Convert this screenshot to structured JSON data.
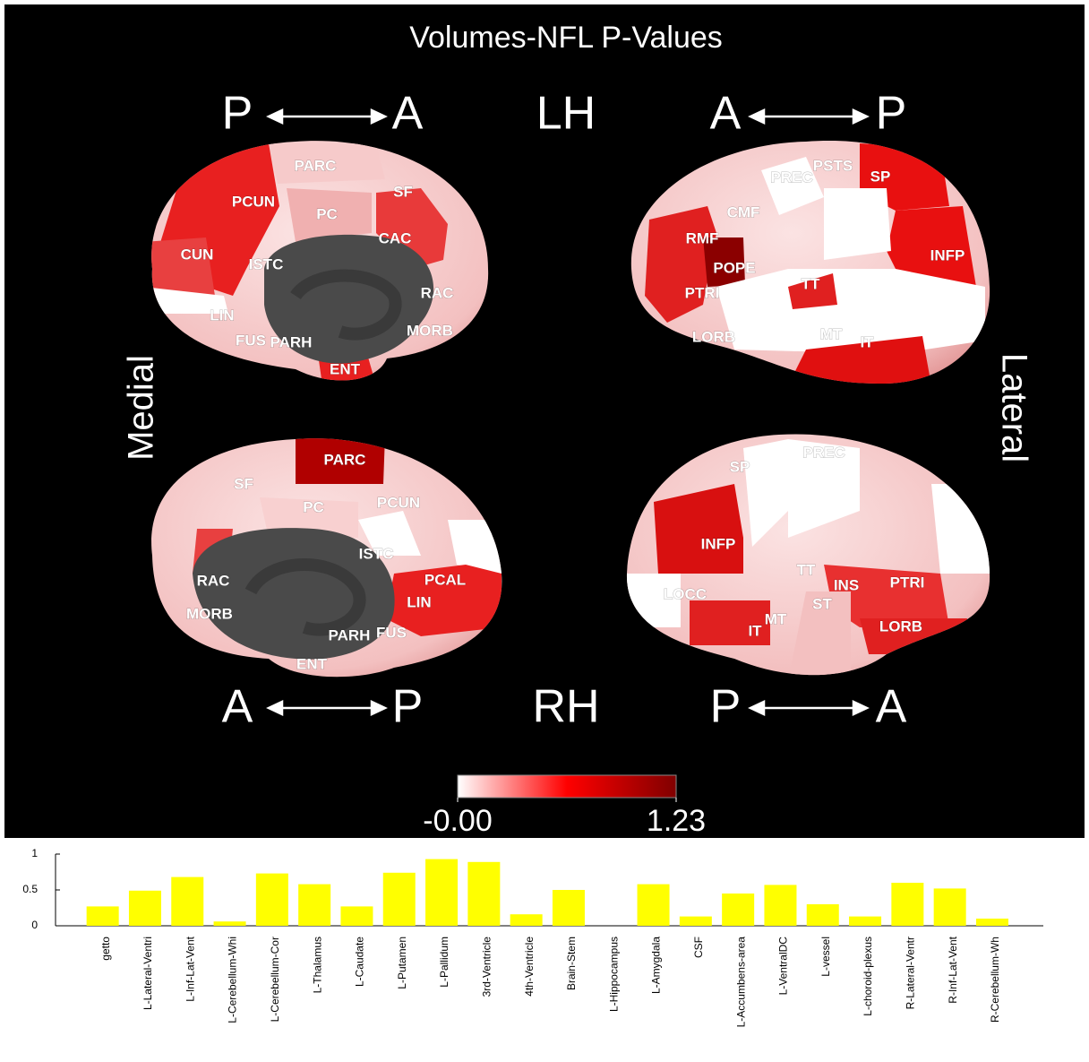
{
  "title": "Volumes-NFL P-Values",
  "orientation": {
    "top": [
      "P",
      "A",
      "LH",
      "A",
      "P"
    ],
    "bottom": [
      "A",
      "P",
      "RH",
      "P",
      "A"
    ],
    "left": "Medial",
    "right": "Lateral"
  },
  "regions": {
    "lh_medial": [
      "PARC",
      "PCUN",
      "SF",
      "PC",
      "CAC",
      "CUN",
      "ISTC",
      "RAC",
      "LIN",
      "FUS",
      "PARH",
      "MORB",
      "ENT"
    ],
    "lh_lateral": [
      "PSTS",
      "PREC",
      "SP",
      "CMF",
      "RMF",
      "POPE",
      "INFP",
      "PTRI",
      "TT",
      "LORB",
      "MT",
      "IT"
    ],
    "rh_medial": [
      "PARC",
      "SF",
      "PC",
      "PCUN",
      "ISTC",
      "RAC",
      "PCAL",
      "LIN",
      "MORB",
      "PARH",
      "FUS",
      "ENT"
    ],
    "rh_lateral": [
      "PREC",
      "SP",
      "INFP",
      "TT",
      "INS",
      "PTRI",
      "ST",
      "MT",
      "IT",
      "LORB",
      "LOCC"
    ]
  },
  "colorbar": {
    "range": [
      0,
      1.23
    ],
    "colors": [
      "#ffffff",
      "#ff0000",
      "#800000"
    ],
    "ticks": [
      {
        "value": 0,
        "label": "-0.00"
      },
      1.23
    ]
  },
  "chart_data": {
    "type": "bar",
    "color": "#ffff00",
    "categories": [
      "getto",
      "L-Lateral-Ventri",
      "L-Inf-Lat-Vent",
      "L-Cerebellum-Whi",
      "L-Cerebellum-Cor",
      "L-Thalamus",
      "L-Caudate",
      "L-Putamen",
      "L-Pallidum",
      "3rd-Ventricle",
      "4th-Ventricle",
      "Brain-Stem",
      "L-Hippocampus",
      "L-Amygdala",
      "CSF",
      "L-Accumbens-area",
      "L-VentralDC",
      "L-vessel",
      "L-choroid-plexus",
      "R-Lateral-Ventr",
      "R-Inf-Lat-Vent",
      "R-Cerebellum-Wh"
    ],
    "values": [
      0.27,
      0.49,
      0.68,
      0.06,
      0.73,
      0.58,
      0.27,
      0.74,
      0.93,
      0.89,
      0.16,
      0.5,
      0,
      0.58,
      0.13,
      0.45,
      0.57,
      0.3,
      0.13,
      0.6,
      0.52,
      0.1
    ],
    "ylim": [
      0,
      1
    ],
    "yticks": [
      0,
      0.5,
      1
    ]
  }
}
